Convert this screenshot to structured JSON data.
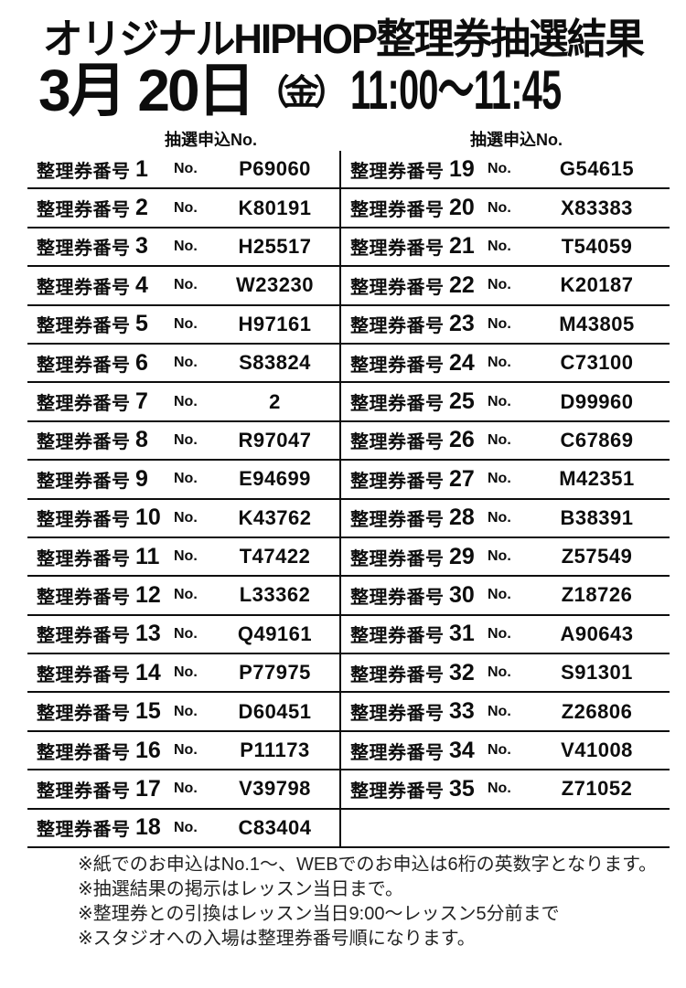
{
  "title": "オリジナルHIPHOP整理券抽選結果",
  "date": {
    "date_text": "3月 20日",
    "weekday": "（金）",
    "time": "11:00～11:45"
  },
  "table": {
    "column_header": "抽選申込No.",
    "row_label_prefix": "整理券番号",
    "no_label": "No.",
    "left_rows": [
      {
        "num": "1",
        "code": "P69060"
      },
      {
        "num": "2",
        "code": "K80191"
      },
      {
        "num": "3",
        "code": "H25517"
      },
      {
        "num": "4",
        "code": "W23230"
      },
      {
        "num": "5",
        "code": "H97161"
      },
      {
        "num": "6",
        "code": "S83824"
      },
      {
        "num": "7",
        "code": "2"
      },
      {
        "num": "8",
        "code": "R97047"
      },
      {
        "num": "9",
        "code": "E94699"
      },
      {
        "num": "10",
        "code": "K43762"
      },
      {
        "num": "11",
        "code": "T47422"
      },
      {
        "num": "12",
        "code": "L33362"
      },
      {
        "num": "13",
        "code": "Q49161"
      },
      {
        "num": "14",
        "code": "P77975"
      },
      {
        "num": "15",
        "code": "D60451"
      },
      {
        "num": "16",
        "code": "P11173"
      },
      {
        "num": "17",
        "code": "V39798"
      },
      {
        "num": "18",
        "code": "C83404"
      }
    ],
    "right_rows": [
      {
        "num": "19",
        "code": "G54615"
      },
      {
        "num": "20",
        "code": "X83383"
      },
      {
        "num": "21",
        "code": "T54059"
      },
      {
        "num": "22",
        "code": "K20187"
      },
      {
        "num": "23",
        "code": "M43805"
      },
      {
        "num": "24",
        "code": "C73100"
      },
      {
        "num": "25",
        "code": "D99960"
      },
      {
        "num": "26",
        "code": "C67869"
      },
      {
        "num": "27",
        "code": "M42351"
      },
      {
        "num": "28",
        "code": "B38391"
      },
      {
        "num": "29",
        "code": "Z57549"
      },
      {
        "num": "30",
        "code": "Z18726"
      },
      {
        "num": "31",
        "code": "A90643"
      },
      {
        "num": "32",
        "code": "S91301"
      },
      {
        "num": "33",
        "code": "Z26806"
      },
      {
        "num": "34",
        "code": "V41008"
      },
      {
        "num": "35",
        "code": "Z71052"
      }
    ]
  },
  "notes": [
    "※紙でのお申込はNo.1～、WEBでのお申込は6桁の英数字となります。",
    "※抽選結果の掲示はレッスン当日まで。",
    "※整理券との引換はレッスン当日9:00～レッスン5分前まで",
    "※スタジオへの入場は整理券番号順になります。"
  ],
  "colors": {
    "text": "#0d0d0d",
    "background": "#ffffff",
    "line": "#0d0d0d"
  }
}
